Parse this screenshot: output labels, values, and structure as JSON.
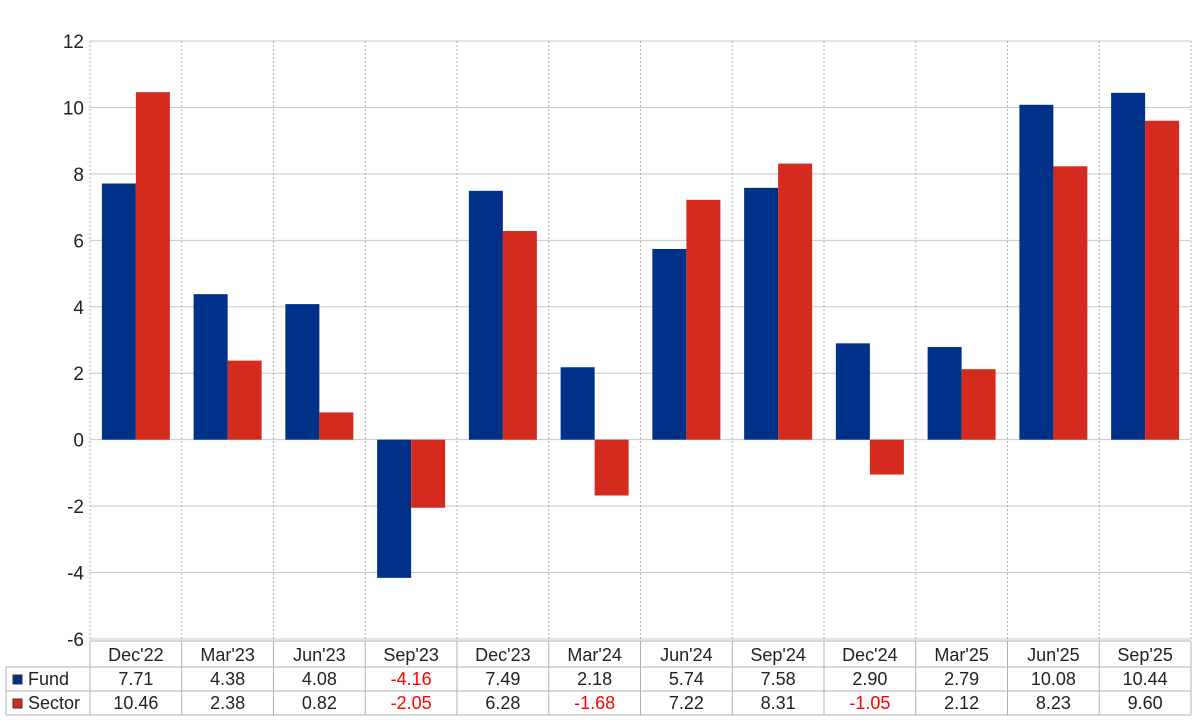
{
  "chart_data": {
    "type": "bar",
    "categories": [
      "Dec'22",
      "Mar'23",
      "Jun'23",
      "Sep'23",
      "Dec'23",
      "Mar'24",
      "Jun'24",
      "Sep'24",
      "Dec'24",
      "Mar'25",
      "Jun'25",
      "Sep'25"
    ],
    "series": [
      {
        "name": "Fund",
        "color": "#003189",
        "values": [
          7.71,
          4.38,
          4.08,
          -4.16,
          7.49,
          2.18,
          5.74,
          7.58,
          2.9,
          2.79,
          10.08,
          10.44
        ],
        "labels": [
          "7.71",
          "4.38",
          "4.08",
          "-4.16",
          "7.49",
          "2.18",
          "5.74",
          "7.58",
          "2.90",
          "2.79",
          "10.08",
          "10.44"
        ]
      },
      {
        "name": "Sector",
        "color": "#d52b1e",
        "values": [
          10.46,
          2.38,
          0.82,
          -2.05,
          6.28,
          -1.68,
          7.22,
          8.31,
          -1.05,
          2.12,
          8.23,
          9.6
        ],
        "labels": [
          "10.46",
          "2.38",
          "0.82",
          "-2.05",
          "6.28",
          "-1.68",
          "7.22",
          "8.31",
          "-1.05",
          "2.12",
          "8.23",
          "9.60"
        ]
      }
    ],
    "ylim": [
      -6,
      12
    ],
    "yticks": [
      "-6",
      "-4",
      "-2",
      "0",
      "2",
      "4",
      "6",
      "8",
      "10",
      "12"
    ],
    "grid": true,
    "legend": "table-below",
    "negative_label_color": "#ff0000",
    "title": "",
    "xlabel": "",
    "ylabel": ""
  }
}
